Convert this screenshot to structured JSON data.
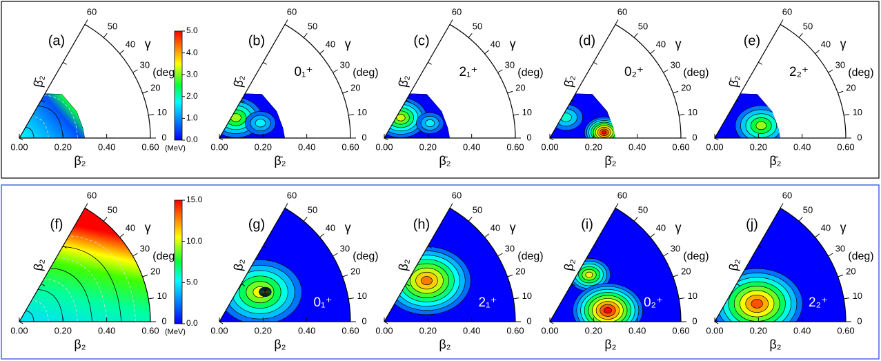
{
  "chart_data": [
    {
      "type": "polar-contour",
      "panel_label": "(a)",
      "xlabel": "β̄₂",
      "radial_label": "β̄₂",
      "gamma_symbol": "γ",
      "gamma_unit": "(deg)",
      "xlim": [
        0,
        0.6
      ],
      "xticks": [
        {
          "value": 0,
          "label": "0.00"
        },
        {
          "value": 0.2,
          "label": "0.20"
        },
        {
          "value": 0.4,
          "label": "0.40"
        },
        {
          "value": 0.6,
          "label": "0.60"
        }
      ],
      "ylim": [
        0,
        60
      ],
      "yticks": [
        0,
        10,
        20,
        30,
        40,
        50,
        60
      ],
      "colorbar": {
        "lim": [
          0,
          5
        ],
        "ticks": [
          {
            "value": 0,
            "label": "0.0"
          },
          {
            "value": 1,
            "label": "1.0"
          },
          {
            "value": 2,
            "label": "2.0"
          },
          {
            "value": 3,
            "label": "3.0"
          },
          {
            "value": 4,
            "label": "4.0"
          },
          {
            "value": 5,
            "label": "5.0"
          }
        ],
        "unit": "(MeV)"
      }
    },
    {
      "type": "polar-contour",
      "panel_label": "(b)",
      "state": "0₁⁺",
      "xlabel": "β̄₂",
      "radial_label": "β̄₂",
      "gamma_symbol": "γ",
      "gamma_unit": "(deg)",
      "xlim": [
        0,
        0.6
      ],
      "xticks": [
        {
          "value": 0,
          "label": "0.00"
        },
        {
          "value": 0.2,
          "label": "0.20"
        },
        {
          "value": 0.4,
          "label": "0.40"
        },
        {
          "value": 0.6,
          "label": "0.60"
        }
      ],
      "ylim": [
        0,
        60
      ],
      "yticks": [
        0,
        10,
        20,
        30,
        40,
        50,
        60
      ]
    },
    {
      "type": "polar-contour",
      "panel_label": "(c)",
      "state": "2₁⁺",
      "xlabel": "β̄₂",
      "radial_label": "β̄₂",
      "gamma_symbol": "γ",
      "gamma_unit": "(deg)",
      "xlim": [
        0,
        0.6
      ],
      "xticks": [
        {
          "value": 0,
          "label": "0.00"
        },
        {
          "value": 0.2,
          "label": "0.20"
        },
        {
          "value": 0.4,
          "label": "0.40"
        },
        {
          "value": 0.6,
          "label": "0.60"
        }
      ],
      "ylim": [
        0,
        60
      ],
      "yticks": [
        0,
        10,
        20,
        30,
        40,
        50,
        60
      ]
    },
    {
      "type": "polar-contour",
      "panel_label": "(d)",
      "state": "0₂⁺",
      "xlabel": "β̄₂",
      "radial_label": "β̄₂",
      "gamma_symbol": "γ",
      "gamma_unit": "(deg)",
      "xlim": [
        0,
        0.6
      ],
      "xticks": [
        {
          "value": 0,
          "label": "0.00"
        },
        {
          "value": 0.2,
          "label": "0.20"
        },
        {
          "value": 0.4,
          "label": "0.40"
        },
        {
          "value": 0.6,
          "label": "0.60"
        }
      ],
      "ylim": [
        0,
        60
      ],
      "yticks": [
        0,
        10,
        20,
        30,
        40,
        50,
        60
      ]
    },
    {
      "type": "polar-contour",
      "panel_label": "(e)",
      "state": "2₂⁺",
      "xlabel": "β̄₂",
      "radial_label": "β̄₂",
      "gamma_symbol": "γ",
      "gamma_unit": "(deg)",
      "xlim": [
        0,
        0.6
      ],
      "xticks": [
        {
          "value": 0,
          "label": "0.00"
        },
        {
          "value": 0.2,
          "label": "0.20"
        },
        {
          "value": 0.4,
          "label": "0.40"
        },
        {
          "value": 0.6,
          "label": "0.60"
        }
      ],
      "ylim": [
        0,
        60
      ],
      "yticks": [
        0,
        10,
        20,
        30,
        40,
        50,
        60
      ]
    },
    {
      "type": "polar-contour",
      "panel_label": "(f)",
      "xlabel": "β₂",
      "radial_label": "β₂",
      "gamma_symbol": "γ",
      "gamma_unit": "(deg)",
      "xlim": [
        0,
        0.6
      ],
      "xticks": [
        {
          "value": 0,
          "label": "0.00"
        },
        {
          "value": 0.2,
          "label": "0.20"
        },
        {
          "value": 0.4,
          "label": "0.40"
        },
        {
          "value": 0.6,
          "label": "0.60"
        }
      ],
      "ylim": [
        0,
        60
      ],
      "yticks": [
        0,
        10,
        20,
        30,
        40,
        50,
        60
      ],
      "colorbar": {
        "lim": [
          0,
          15
        ],
        "ticks": [
          {
            "value": 0,
            "label": "0.0"
          },
          {
            "value": 5,
            "label": "5.0"
          },
          {
            "value": 10,
            "label": "10.0"
          },
          {
            "value": 15,
            "label": "15.0"
          }
        ],
        "unit": "(MeV)"
      }
    },
    {
      "type": "polar-contour",
      "panel_label": "(g)",
      "state": "0₁⁺",
      "xlabel": "β₂",
      "radial_label": "β₂",
      "gamma_symbol": "γ",
      "gamma_unit": "(deg)",
      "xlim": [
        0,
        0.6
      ],
      "xticks": [
        {
          "value": 0,
          "label": "0.00"
        },
        {
          "value": 0.2,
          "label": "0.20"
        },
        {
          "value": 0.4,
          "label": "0.40"
        },
        {
          "value": 0.6,
          "label": "0.60"
        }
      ],
      "ylim": [
        0,
        60
      ],
      "yticks": [
        0,
        10,
        20,
        30,
        40,
        50,
        60
      ]
    },
    {
      "type": "polar-contour",
      "panel_label": "(h)",
      "state": "2₁⁺",
      "xlabel": "β₂",
      "radial_label": "β₂",
      "gamma_symbol": "γ",
      "gamma_unit": "(deg)",
      "xlim": [
        0,
        0.6
      ],
      "xticks": [
        {
          "value": 0,
          "label": "0.00"
        },
        {
          "value": 0.2,
          "label": "0.20"
        },
        {
          "value": 0.4,
          "label": "0.40"
        },
        {
          "value": 0.6,
          "label": "0.60"
        }
      ],
      "ylim": [
        0,
        60
      ],
      "yticks": [
        0,
        10,
        20,
        30,
        40,
        50,
        60
      ]
    },
    {
      "type": "polar-contour",
      "panel_label": "(i)",
      "state": "0₂⁺",
      "xlabel": "β₂",
      "radial_label": "β₂",
      "gamma_symbol": "γ",
      "gamma_unit": "(deg)",
      "xlim": [
        0,
        0.6
      ],
      "xticks": [
        {
          "value": 0,
          "label": "0.00"
        },
        {
          "value": 0.2,
          "label": "0.20"
        },
        {
          "value": 0.4,
          "label": "0.40"
        },
        {
          "value": 0.6,
          "label": "0.60"
        }
      ],
      "ylim": [
        0,
        60
      ],
      "yticks": [
        0,
        10,
        20,
        30,
        40,
        50,
        60
      ]
    },
    {
      "type": "polar-contour",
      "panel_label": "(j)",
      "state": "2₂⁺",
      "xlabel": "β₂",
      "radial_label": "β₂",
      "gamma_symbol": "γ",
      "gamma_unit": "(deg)",
      "xlim": [
        0,
        0.6
      ],
      "xticks": [
        {
          "value": 0,
          "label": "0.00"
        },
        {
          "value": 0.2,
          "label": "0.20"
        },
        {
          "value": 0.4,
          "label": "0.40"
        },
        {
          "value": 0.6,
          "label": "0.60"
        }
      ],
      "ylim": [
        0,
        60
      ],
      "yticks": [
        0,
        10,
        20,
        30,
        40,
        50,
        60
      ]
    }
  ]
}
